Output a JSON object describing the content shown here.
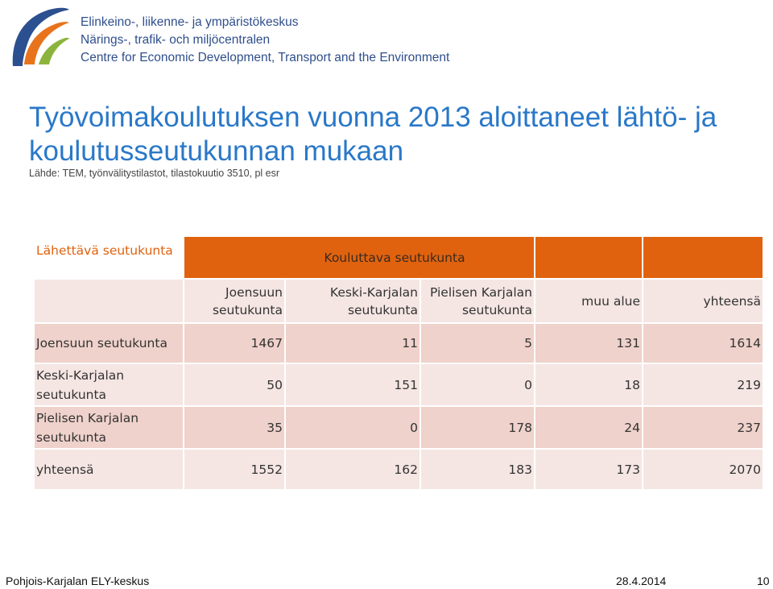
{
  "header": {
    "org_lines": [
      "Elinkeino-, liikenne- ja ympäristökeskus",
      "Närings-, trafik- och miljöcentralen",
      "Centre for Economic Development, Transport and the Environment"
    ],
    "logo_colors": {
      "orange": "#e8731c",
      "blue": "#2c4f8f",
      "green": "#8cb43c"
    }
  },
  "slide": {
    "title": "Työvoimakoulutuksen vuonna 2013 aloittaneet lähtö- ja koulutusseutukunnan mukaan",
    "source": "Lähde: TEM, työnvälitystilastot, tilastokuutio 3510, pl esr"
  },
  "table": {
    "corner_label": "Lähettävä seutukunta",
    "group_label": "Kouluttava seutukunta",
    "columns": [
      "Joensuun seutukunta",
      "Keski-Karjalan seutukunta",
      "Pielisen Karjalan seutukunta",
      "muu alue",
      "yhteensä"
    ],
    "rows": [
      {
        "label": "Joensuun seutukunta",
        "values": [
          "1467",
          "11",
          "5",
          "131",
          "1614"
        ]
      },
      {
        "label": "Keski-Karjalan seutukunta",
        "values": [
          "50",
          "151",
          "0",
          "18",
          "219"
        ]
      },
      {
        "label": "Pielisen Karjalan seutukunta",
        "values": [
          "35",
          "0",
          "178",
          "24",
          "237"
        ]
      },
      {
        "label": "yhteensä",
        "values": [
          "1552",
          "162",
          "183",
          "173",
          "2070"
        ]
      }
    ],
    "colors": {
      "header": "#e0620f",
      "band_light": "#f5e6e3",
      "band_dark": "#efd2cb"
    }
  },
  "footer": {
    "left": "Pohjois-Karjalan ELY-keskus",
    "date": "28.4.2014",
    "page": "10"
  }
}
